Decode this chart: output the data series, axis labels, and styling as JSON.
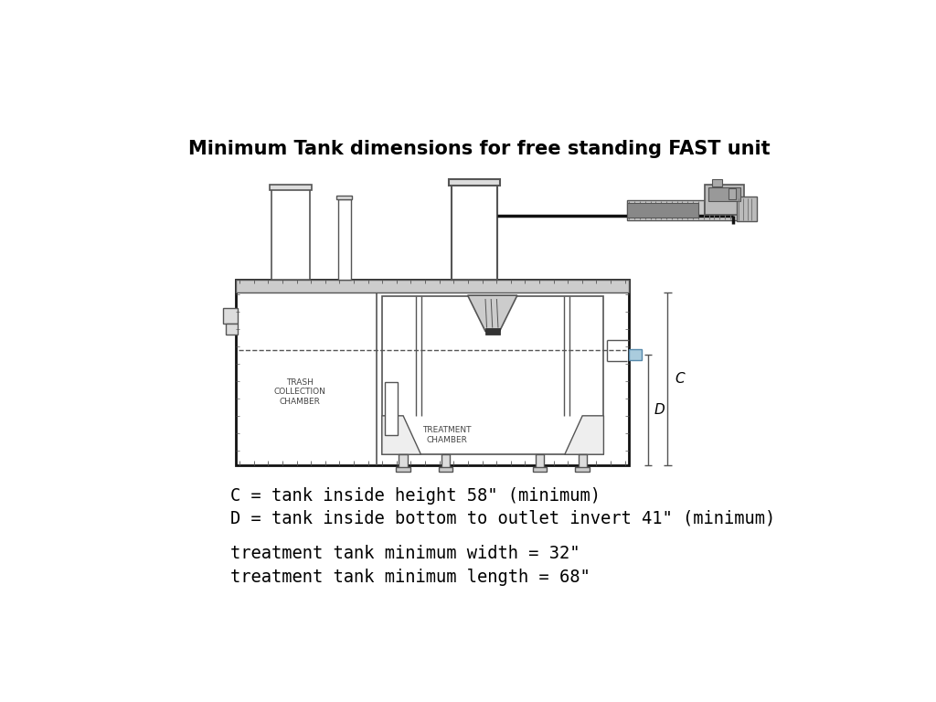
{
  "title": "Minimum Tank dimensions for free standing FAST unit",
  "title_fontsize": 15,
  "title_fontweight": "bold",
  "annotation_lines": [
    "C = tank inside height 58\" (minimum)",
    "D = tank inside bottom to outlet invert 41\" (minimum)"
  ],
  "annotation2_lines": [
    "treatment tank minimum width = 32\"",
    "treatment tank minimum length = 68\""
  ],
  "annotation_fontsize": 13.5,
  "annotation_font": "monospace",
  "bg_color": "#ffffff",
  "label_trash": "TRASH\nCOLLECTION\nCHAMBER",
  "label_treatment": "TREATMENT\nCHAMBER",
  "label_c": "C",
  "label_d": "D",
  "gray": "#555555",
  "lgray": "#888888",
  "vlgray": "#bbbbbb"
}
